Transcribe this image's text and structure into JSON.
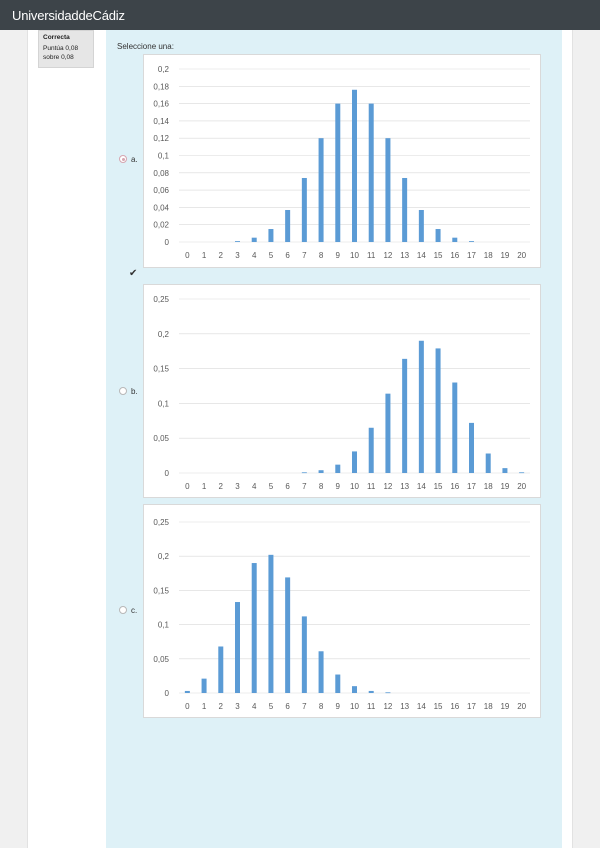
{
  "header": {
    "brand": "UniversidaddeCádiz"
  },
  "question_info": {
    "state": "Correcta",
    "grade": "Puntúa 0,08 sobre 0,08"
  },
  "prompt": "Seleccione una:",
  "options": [
    {
      "label": "a.",
      "selected": true,
      "correct_mark": true
    },
    {
      "label": "b.",
      "selected": false,
      "correct_mark": false
    },
    {
      "label": "c.",
      "selected": false,
      "correct_mark": false
    }
  ],
  "colors": {
    "bar": "#5b9bd5",
    "topbar": "#3d4449",
    "content_bg": "#def1f7",
    "grid": "#d9d9d9"
  },
  "icons": {
    "correct": "check-icon"
  },
  "chart_data": [
    {
      "type": "bar",
      "categories": [
        "0",
        "1",
        "2",
        "3",
        "4",
        "5",
        "6",
        "7",
        "8",
        "9",
        "10",
        "11",
        "12",
        "13",
        "14",
        "15",
        "16",
        "17",
        "18",
        "19",
        "20"
      ],
      "values": [
        0,
        0,
        0,
        0.001,
        0.005,
        0.015,
        0.037,
        0.074,
        0.12,
        0.16,
        0.176,
        0.16,
        0.12,
        0.074,
        0.037,
        0.015,
        0.005,
        0.001,
        0,
        0,
        0
      ],
      "ylim": [
        0,
        0.2
      ],
      "yticks": [
        "0",
        "0,02",
        "0,04",
        "0,06",
        "0,08",
        "0,1",
        "0,12",
        "0,14",
        "0,16",
        "0,18",
        "0,2"
      ],
      "grid": true
    },
    {
      "type": "bar",
      "categories": [
        "0",
        "1",
        "2",
        "3",
        "4",
        "5",
        "6",
        "7",
        "8",
        "9",
        "10",
        "11",
        "12",
        "13",
        "14",
        "15",
        "16",
        "17",
        "18",
        "19",
        "20"
      ],
      "values": [
        0,
        0,
        0,
        0,
        0,
        0,
        0,
        0.001,
        0.004,
        0.012,
        0.031,
        0.065,
        0.114,
        0.164,
        0.19,
        0.179,
        0.13,
        0.072,
        0.028,
        0.007,
        0.001
      ],
      "ylim": [
        0,
        0.25
      ],
      "yticks": [
        "0",
        "0,05",
        "0,1",
        "0,15",
        "0,2",
        "0,25"
      ],
      "grid": true
    },
    {
      "type": "bar",
      "categories": [
        "0",
        "1",
        "2",
        "3",
        "4",
        "5",
        "6",
        "7",
        "8",
        "9",
        "10",
        "11",
        "12",
        "13",
        "14",
        "15",
        "16",
        "17",
        "18",
        "19",
        "20"
      ],
      "values": [
        0.003,
        0.021,
        0.068,
        0.133,
        0.19,
        0.202,
        0.169,
        0.112,
        0.061,
        0.027,
        0.01,
        0.003,
        0.001,
        0,
        0,
        0,
        0,
        0,
        0,
        0,
        0
      ],
      "ylim": [
        0,
        0.25
      ],
      "yticks": [
        "0",
        "0,05",
        "0,1",
        "0,15",
        "0,2",
        "0,25"
      ],
      "grid": true
    }
  ]
}
